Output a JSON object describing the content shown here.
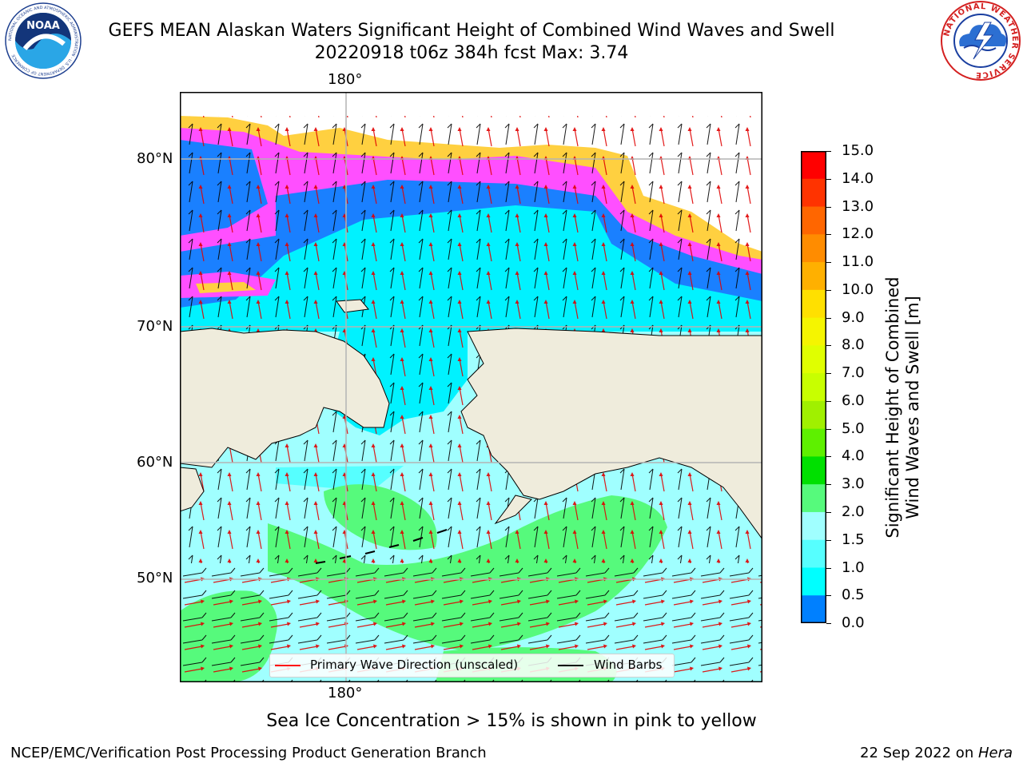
{
  "header": {
    "title_line1": "GEFS MEAN Alaskan Waters Significant Height of Combined Wind Waves and Swell",
    "title_line2": "20220918 t06z 384h fcst   Max: 3.74"
  },
  "logos": {
    "left": {
      "icon": "noaa-logo-icon",
      "text": "NOAA",
      "ring_text": "NATIONAL OCEANIC AND ATMOSPHERIC ADMINISTRATION · U.S. DEPARTMENT OF COMMERCE"
    },
    "right": {
      "icon": "nws-logo-icon",
      "ring_text": "NATIONAL WEATHER SERVICE"
    }
  },
  "map": {
    "lon_label_top": "180°",
    "lon_label_bottom": "180°",
    "lat_labels": [
      "80°N",
      "70°N",
      "60°N",
      "50°N"
    ],
    "colors": {
      "land": "#efecdc",
      "ocean_low": "#00ffff",
      "ocean_mid": "#a0ffff",
      "ocean_high": "#56fa7c",
      "ice_edge": "#ff3fff",
      "gridline": "#b4b4b4"
    }
  },
  "colorbar": {
    "title_line1": "Significant Height of Combined",
    "title_line2": "Wind Waves and Swell [m]",
    "ticks": [
      "15.0",
      "14.0",
      "13.0",
      "12.0",
      "11.0",
      "10.0",
      "9.0",
      "8.0",
      "7.0",
      "6.0",
      "5.0",
      "4.0",
      "3.0",
      "2.0",
      "1.5",
      "1.0",
      "0.5",
      "0.0"
    ],
    "colors": [
      "#ff0000",
      "#ff3300",
      "#ff6600",
      "#ff8c00",
      "#ffb000",
      "#ffe000",
      "#f5f500",
      "#e0ff00",
      "#c8ff00",
      "#a0f000",
      "#5ef000",
      "#00e000",
      "#56fa7c",
      "#a0ffff",
      "#56ffff",
      "#00ffff",
      "#0080ff",
      "#0000ff"
    ]
  },
  "legend": {
    "items": [
      {
        "label": "Primary Wave Direction (unscaled)",
        "color": "#ff0000"
      },
      {
        "label": "Wind Barbs",
        "color": "#000000"
      }
    ]
  },
  "caption": "Sea Ice Concentration > 15% is shown in pink to yellow",
  "footer": {
    "left": "NCEP/EMC/Verification Post Processing Product Generation Branch",
    "date": "22 Sep 2022 on ",
    "machine": "Hera"
  }
}
